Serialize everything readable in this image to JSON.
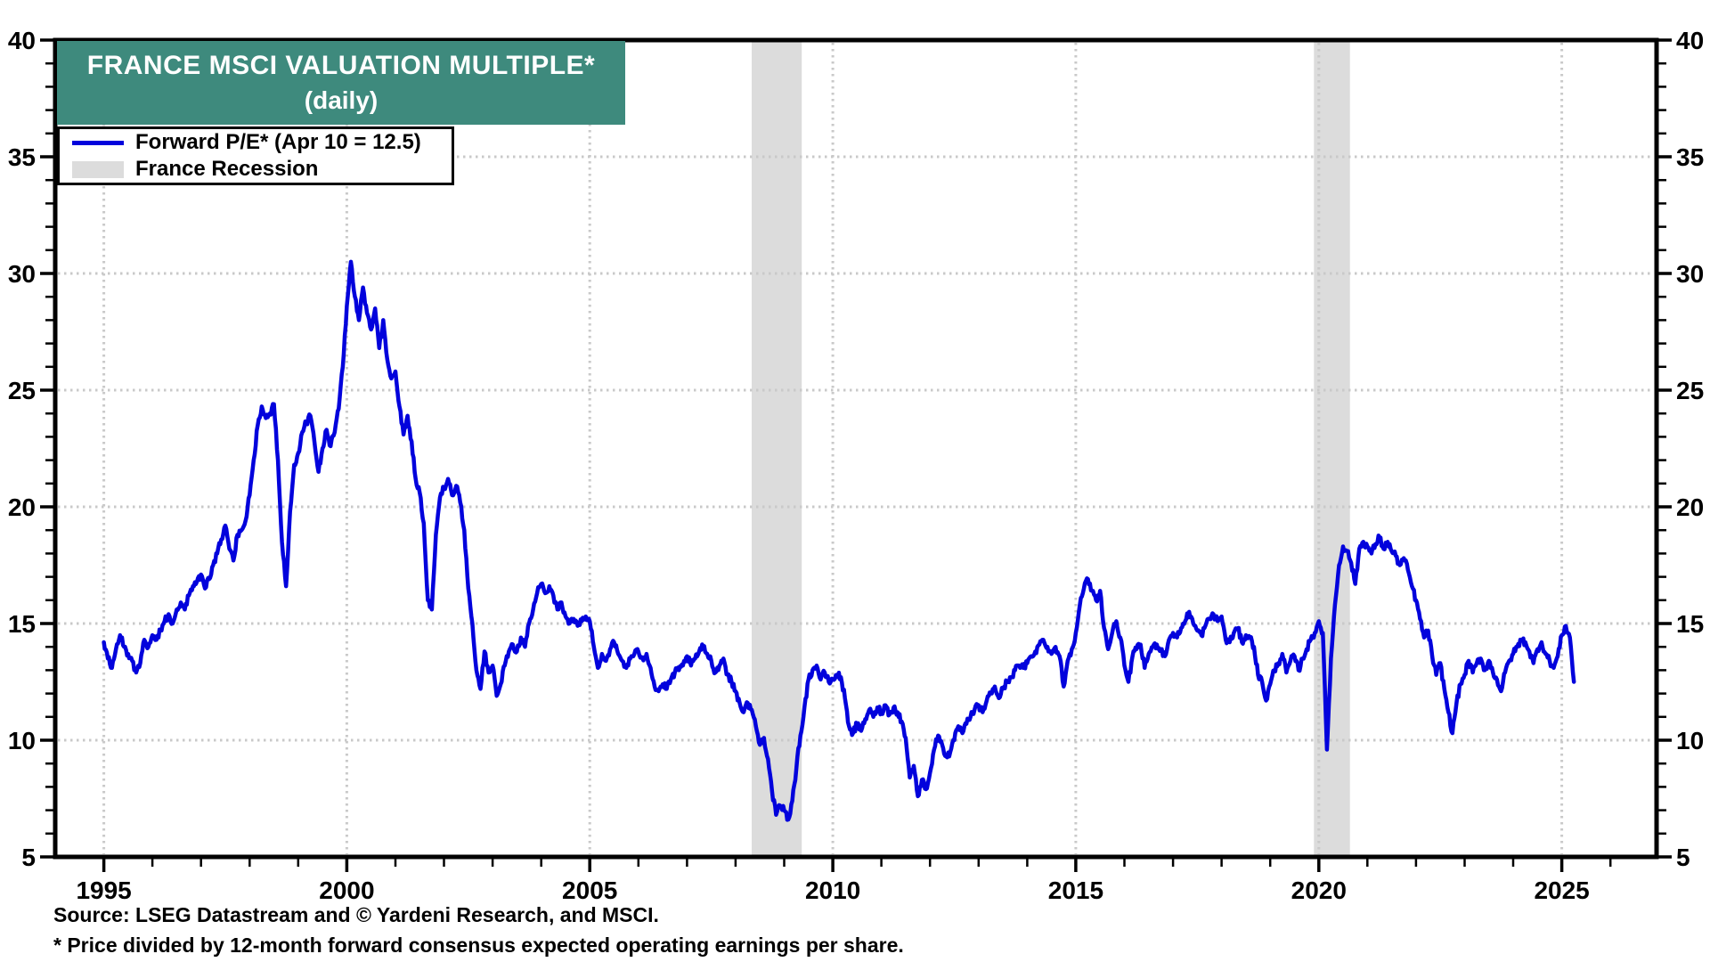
{
  "title": {
    "line1": "FRANCE MSCI VALUATION MULTIPLE*",
    "line2": "(daily)"
  },
  "legend": {
    "series_label": "Forward P/E* (Apr 10 = 12.5)",
    "recession_label": "France Recession"
  },
  "footer": {
    "source_line": "Source: LSEG Datastream and © Yardeni Research, and MSCI.",
    "footnote_line": "* Price divided by 12-month forward consensus expected operating earnings per share."
  },
  "colors": {
    "title_bg": "#3E8A7D",
    "title_text": "#ffffff",
    "line": "#0202DC",
    "recession_band": "#DCDCDC",
    "gridline": "#C9C9C9",
    "axis": "#000000",
    "background": "#ffffff"
  },
  "chart_data": {
    "type": "line",
    "title": "FRANCE MSCI VALUATION MULTIPLE* (daily)",
    "xlabel": "",
    "ylabel": "Forward P/E",
    "xlim": [
      1994.0,
      2026.95
    ],
    "ylim": [
      5,
      40
    ],
    "xticks": [
      1995,
      2000,
      2005,
      2010,
      2015,
      2020,
      2025
    ],
    "yticks": [
      5,
      10,
      15,
      20,
      25,
      30,
      35,
      40
    ],
    "grid": "dotted",
    "legend_position": "top-left",
    "recession_bands": [
      {
        "name": "France Recession 2008-2009",
        "start": 2008.33,
        "end": 2009.36
      },
      {
        "name": "France Recession 2020",
        "start": 2019.9,
        "end": 2020.64
      }
    ],
    "series": [
      {
        "name": "Forward P/E* (Apr 10 = 12.5)",
        "start_year": 1995,
        "interval": "monthly",
        "last_point_label": "Apr 10 = 12.5",
        "values": [
          14.2,
          13.5,
          13.1,
          13.9,
          14.5,
          14.0,
          13.7,
          13.4,
          12.9,
          13.3,
          14.3,
          14.0,
          14.5,
          14.3,
          14.7,
          15.1,
          15.4,
          15.0,
          15.6,
          15.9,
          15.6,
          16.2,
          16.6,
          16.8,
          17.1,
          16.5,
          16.9,
          17.5,
          18.0,
          18.6,
          19.2,
          18.2,
          17.7,
          18.8,
          19.0,
          19.4,
          20.5,
          22.0,
          23.5,
          24.3,
          23.8,
          24.0,
          24.4,
          22.0,
          18.5,
          16.6,
          19.8,
          21.8,
          22.3,
          23.2,
          23.6,
          23.9,
          22.8,
          21.5,
          22.5,
          23.3,
          22.6,
          23.2,
          24.2,
          26.0,
          28.6,
          30.5,
          29.0,
          28.0,
          29.4,
          28.3,
          27.6,
          28.5,
          26.8,
          28.0,
          26.3,
          25.5,
          25.8,
          24.3,
          23.1,
          23.9,
          22.8,
          21.2,
          20.6,
          19.3,
          16.0,
          15.6,
          18.8,
          20.4,
          20.8,
          21.2,
          20.5,
          20.9,
          20.2,
          19.0,
          16.5,
          15.0,
          13.0,
          12.2,
          13.8,
          12.9,
          13.2,
          11.9,
          12.4,
          13.2,
          13.8,
          14.1,
          13.8,
          14.4,
          14.0,
          15.0,
          15.6,
          16.3,
          16.7,
          16.3,
          16.6,
          16.2,
          15.6,
          15.9,
          15.3,
          15.0,
          15.2,
          14.9,
          15.1,
          15.3,
          15.1,
          14.0,
          13.1,
          13.7,
          13.4,
          13.9,
          14.2,
          13.7,
          13.4,
          13.1,
          13.5,
          13.7,
          13.8,
          13.5,
          13.7,
          13.1,
          12.3,
          12.1,
          12.4,
          12.2,
          12.6,
          12.9,
          13.0,
          13.2,
          13.6,
          13.2,
          13.5,
          13.8,
          14.0,
          13.7,
          13.4,
          12.9,
          13.2,
          13.5,
          12.8,
          12.5,
          12.1,
          11.6,
          11.2,
          11.6,
          11.3,
          10.6,
          9.8,
          10.1,
          9.2,
          7.8,
          6.8,
          7.2,
          7.0,
          6.6,
          7.4,
          8.8,
          10.2,
          11.4,
          12.6,
          13.0,
          13.2,
          12.6,
          12.9,
          12.5,
          12.6,
          12.8,
          12.7,
          11.8,
          10.6,
          10.3,
          10.7,
          10.4,
          10.9,
          11.3,
          11.0,
          11.4,
          11.2,
          11.5,
          11.1,
          11.4,
          11.2,
          10.8,
          10.1,
          8.4,
          8.9,
          7.6,
          8.3,
          7.9,
          8.6,
          9.6,
          10.2,
          9.8,
          9.3,
          9.5,
          10.0,
          10.6,
          10.3,
          10.7,
          11.0,
          11.3,
          11.5,
          11.2,
          11.7,
          12.0,
          12.3,
          11.8,
          12.2,
          12.5,
          12.7,
          13.0,
          13.2,
          13.1,
          13.3,
          13.6,
          13.8,
          14.1,
          14.3,
          14.0,
          13.7,
          14.0,
          13.6,
          12.3,
          13.4,
          13.9,
          14.6,
          15.8,
          16.5,
          16.9,
          16.4,
          16.0,
          16.4,
          14.8,
          13.9,
          14.6,
          15.1,
          14.4,
          13.2,
          12.5,
          13.6,
          13.9,
          14.1,
          13.1,
          13.7,
          14.0,
          14.1,
          13.9,
          13.6,
          14.3,
          14.6,
          14.4,
          14.8,
          15.1,
          15.5,
          15.0,
          14.7,
          14.5,
          14.9,
          15.2,
          15.4,
          15.1,
          15.3,
          14.3,
          14.2,
          14.6,
          14.8,
          14.2,
          14.5,
          14.4,
          14.0,
          12.8,
          12.5,
          11.7,
          12.4,
          13.0,
          13.3,
          13.7,
          12.9,
          13.4,
          13.6,
          13.0,
          13.5,
          13.9,
          14.3,
          14.6,
          15.1,
          14.6,
          9.6,
          13.5,
          15.8,
          17.5,
          18.3,
          18.1,
          17.6,
          16.7,
          18.2,
          18.5,
          18.3,
          18.0,
          18.4,
          18.7,
          18.2,
          18.5,
          18.1,
          17.9,
          17.5,
          17.8,
          17.3,
          16.6,
          16.0,
          15.2,
          14.4,
          14.7,
          13.6,
          12.8,
          13.3,
          12.2,
          11.2,
          10.3,
          11.6,
          12.4,
          12.8,
          13.4,
          12.9,
          13.3,
          13.5,
          13.0,
          13.4,
          12.9,
          12.6,
          12.1,
          12.9,
          13.4,
          13.7,
          14.0,
          14.3,
          14.2,
          13.8,
          13.3,
          13.9,
          14.2,
          13.7,
          13.4,
          13.1,
          13.6,
          14.5,
          14.9,
          14.4,
          12.5
        ]
      }
    ]
  }
}
